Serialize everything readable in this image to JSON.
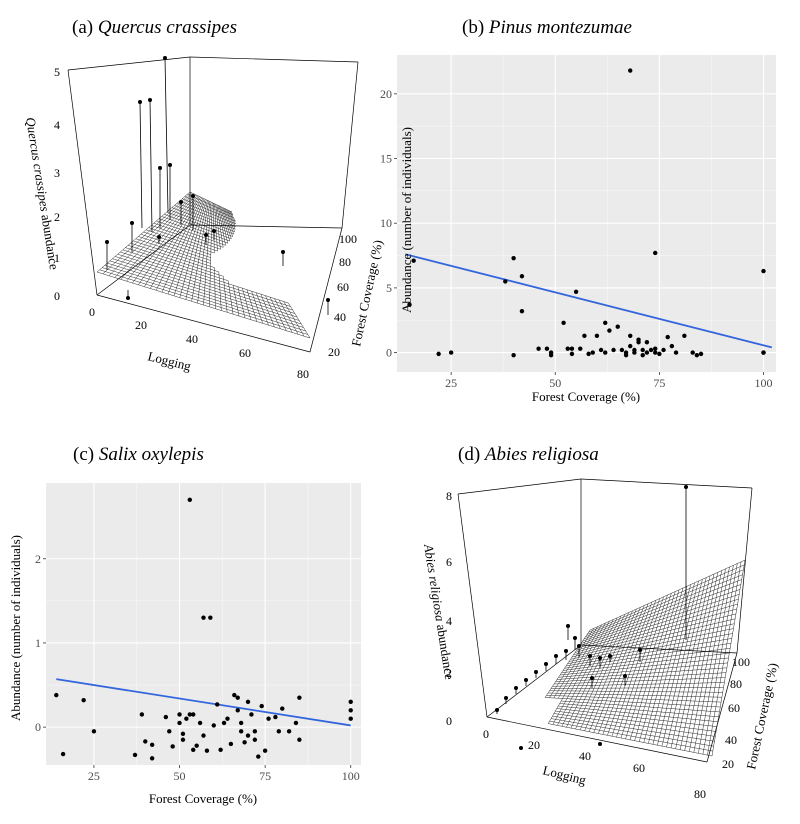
{
  "panels": {
    "a": {
      "letter": "(a)",
      "species": "Quercus crassipes"
    },
    "b": {
      "letter": "(b)",
      "species": "Pinus montezumae"
    },
    "c": {
      "letter": "(c)",
      "species": "Salix oxylepis"
    },
    "d": {
      "letter": "(d)",
      "species": "Abies religiosa"
    }
  },
  "chart_data": [
    {
      "panel": "a",
      "type": "surface3d",
      "title": "(a) Quercus crassipes",
      "xlabel": "Logging",
      "ylabel": "Forest Coverage (%)",
      "zlabel_italic": "Quercus crassipes",
      "zlabel_rest": " abundance",
      "x_ticks": [
        "0",
        "20",
        "40",
        "60",
        "80"
      ],
      "y_ticks": [
        "20",
        "40",
        "60",
        "80",
        "100"
      ],
      "z_ticks": [
        "0",
        "1",
        "2",
        "3",
        "4",
        "5"
      ],
      "xlim": [
        0,
        80
      ],
      "ylim": [
        20,
        100
      ],
      "zlim": [
        0,
        5
      ]
    },
    {
      "panel": "b",
      "type": "scatter",
      "title": "(b) Pinus montezumae",
      "xlabel": "Forest Coverage (%)",
      "ylabel": "Abundance (number of individuals)",
      "xlim": [
        12,
        103
      ],
      "ylim": [
        -1.5,
        23
      ],
      "x_ticks": [
        25,
        50,
        75,
        100
      ],
      "y_ticks": [
        0,
        5,
        10,
        15,
        20
      ],
      "trend_line": {
        "x": [
          14,
          102
        ],
        "y": [
          7.6,
          0.4
        ],
        "color": "#3366dd"
      },
      "points": [
        [
          15,
          3.7
        ],
        [
          16,
          7.1
        ],
        [
          22,
          -0.1
        ],
        [
          25,
          0
        ],
        [
          38,
          5.5
        ],
        [
          40,
          7.3
        ],
        [
          40,
          -0.2
        ],
        [
          42,
          5.9
        ],
        [
          42,
          3.2
        ],
        [
          46,
          0.3
        ],
        [
          48,
          0.3
        ],
        [
          49,
          -0.2
        ],
        [
          49,
          0
        ],
        [
          52,
          2.3
        ],
        [
          53,
          0.3
        ],
        [
          54,
          -0.1
        ],
        [
          54,
          0.3
        ],
        [
          55,
          4.7
        ],
        [
          56,
          0.3
        ],
        [
          57,
          1.3
        ],
        [
          58,
          -0.1
        ],
        [
          59,
          0
        ],
        [
          60,
          1.3
        ],
        [
          61,
          0.2
        ],
        [
          62,
          2.3
        ],
        [
          62,
          0
        ],
        [
          63,
          1.7
        ],
        [
          64,
          0.2
        ],
        [
          65,
          2.0
        ],
        [
          66,
          0.2
        ],
        [
          67,
          -0.2
        ],
        [
          67,
          0
        ],
        [
          68,
          0.5
        ],
        [
          68,
          1.3
        ],
        [
          69,
          0.2
        ],
        [
          69,
          0
        ],
        [
          70,
          0.8
        ],
        [
          70,
          1.0
        ],
        [
          71,
          0.2
        ],
        [
          71,
          -0.2
        ],
        [
          72,
          0
        ],
        [
          72,
          0.8
        ],
        [
          73,
          0.2
        ],
        [
          74,
          0.3
        ],
        [
          74,
          0
        ],
        [
          75,
          -0.1
        ],
        [
          76,
          0.2
        ],
        [
          77,
          1.2
        ],
        [
          78,
          0.5
        ],
        [
          79,
          0
        ],
        [
          81,
          1.3
        ],
        [
          83,
          0
        ],
        [
          84,
          -0.2
        ],
        [
          85,
          -0.1
        ],
        [
          100,
          0
        ],
        [
          100,
          0
        ],
        [
          68,
          21.8
        ],
        [
          74,
          7.7
        ],
        [
          100,
          6.3
        ]
      ]
    },
    {
      "panel": "c",
      "type": "scatter",
      "title": "(c) Salix oxylepis",
      "xlabel": "Forest Coverage (%)",
      "ylabel": "Abundance (number of individuals)",
      "xlim": [
        11,
        103
      ],
      "ylim": [
        -0.45,
        2.9
      ],
      "x_ticks": [
        25,
        50,
        75,
        100
      ],
      "y_ticks": [
        0,
        1,
        2
      ],
      "trend_line": {
        "x": [
          14,
          100
        ],
        "y": [
          0.57,
          0.02
        ],
        "color": "#3366dd"
      },
      "points": [
        [
          14,
          0.38
        ],
        [
          16,
          -0.32
        ],
        [
          22,
          0.32
        ],
        [
          25,
          -0.05
        ],
        [
          37,
          -0.33
        ],
        [
          39,
          0.15
        ],
        [
          40,
          -0.17
        ],
        [
          42,
          -0.21
        ],
        [
          42,
          -0.37
        ],
        [
          46,
          0.12
        ],
        [
          47,
          -0.05
        ],
        [
          48,
          -0.23
        ],
        [
          50,
          0.05
        ],
        [
          50,
          0.15
        ],
        [
          51,
          -0.08
        ],
        [
          51,
          -0.15
        ],
        [
          52,
          0.1
        ],
        [
          53,
          0.15
        ],
        [
          54,
          0.15
        ],
        [
          54,
          -0.27
        ],
        [
          55,
          -0.22
        ],
        [
          56,
          0.05
        ],
        [
          57,
          -0.1
        ],
        [
          58,
          -0.28
        ],
        [
          60,
          0.02
        ],
        [
          61,
          0.27
        ],
        [
          62,
          -0.27
        ],
        [
          63,
          0.05
        ],
        [
          64,
          0.1
        ],
        [
          65,
          -0.2
        ],
        [
          66,
          0.38
        ],
        [
          67,
          0.35
        ],
        [
          67,
          0.2
        ],
        [
          68,
          -0.05
        ],
        [
          68,
          0.05
        ],
        [
          69,
          -0.18
        ],
        [
          70,
          0.3
        ],
        [
          70,
          -0.1
        ],
        [
          71,
          0.15
        ],
        [
          72,
          -0.05
        ],
        [
          72,
          -0.15
        ],
        [
          73,
          -0.35
        ],
        [
          74,
          0.25
        ],
        [
          75,
          -0.28
        ],
        [
          76,
          0.1
        ],
        [
          78,
          0.12
        ],
        [
          79,
          -0.05
        ],
        [
          80,
          0.22
        ],
        [
          82,
          -0.05
        ],
        [
          84,
          0.05
        ],
        [
          85,
          -0.15
        ],
        [
          85,
          0.35
        ],
        [
          100,
          0.3
        ],
        [
          100,
          0.2
        ],
        [
          100,
          0.1
        ],
        [
          53,
          2.7
        ],
        [
          57,
          1.3
        ],
        [
          59,
          1.3
        ]
      ]
    },
    {
      "panel": "d",
      "type": "surface3d",
      "title": "(d) Abies religiosa",
      "xlabel": "Logging",
      "ylabel": "Forest Coverage (%)",
      "zlabel_italic": "Abies religiosa",
      "zlabel_rest": " abundance",
      "x_ticks": [
        "0",
        "20",
        "40",
        "60",
        "80"
      ],
      "y_ticks": [
        "20",
        "40",
        "60",
        "80",
        "100"
      ],
      "z_ticks": [
        "0",
        "2",
        "4",
        "6",
        "8"
      ],
      "xlim": [
        0,
        80
      ],
      "ylim": [
        20,
        100
      ],
      "zlim": [
        0,
        8
      ]
    }
  ]
}
